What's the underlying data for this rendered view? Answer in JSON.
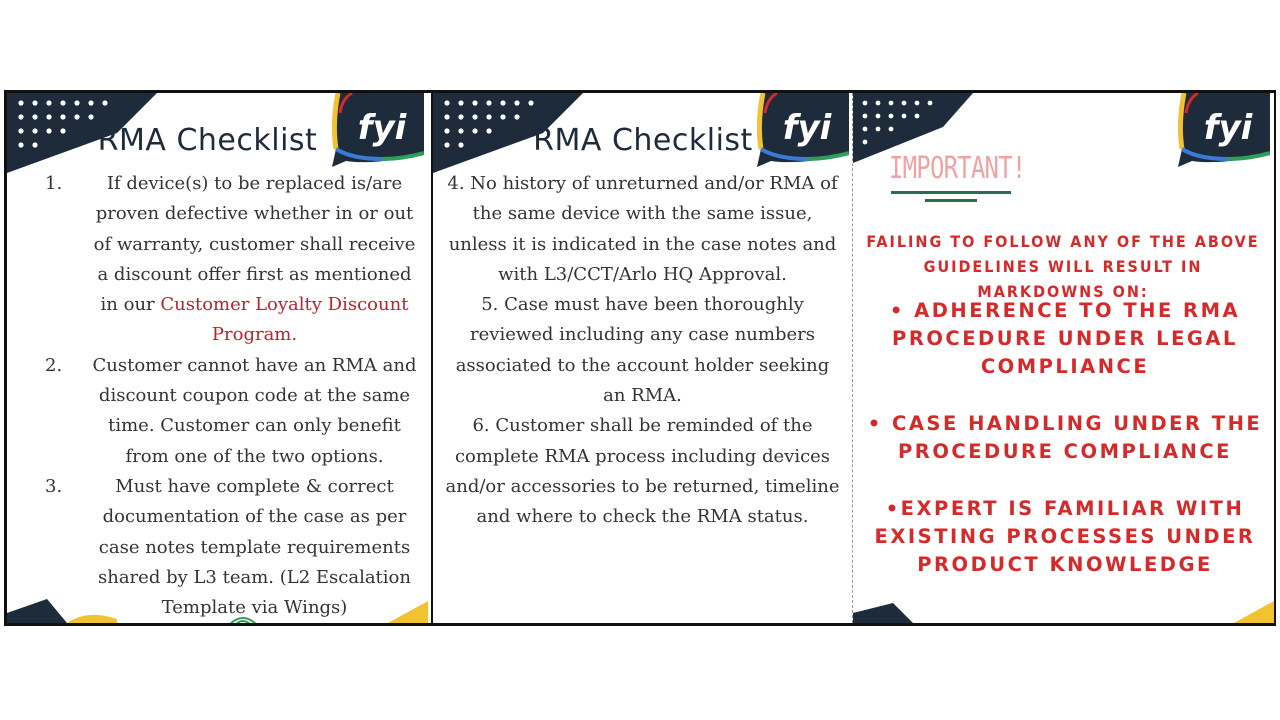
{
  "logo_text": "fyi",
  "colors": {
    "navy": "#1d2b3a",
    "yellow": "#f2c230",
    "red": "#c0222b",
    "alert_red": "#d62a2a",
    "pink": "#f0a3a3",
    "green": "#2e6b53"
  },
  "panel1": {
    "title": "RMA Checklist",
    "items": [
      {
        "num": "1.",
        "text_a": "If device(s) to be replaced is/are proven defective whether in or out of warranty, customer shall receive a discount offer first as mentioned in our ",
        "link": "Customer Loyalty Discount Program.",
        "text_b": ""
      },
      {
        "num": "2.",
        "text_a": "Customer cannot have an RMA and discount coupon code at the same time. Customer can only benefit from one of the two options.",
        "link": "",
        "text_b": ""
      },
      {
        "num": "3.",
        "text_a": "Must have complete & correct documentation of the case as per case notes template requirements shared by L3 team. (L2 Escalation Template via Wings)",
        "link": "",
        "text_b": ""
      }
    ]
  },
  "panel2": {
    "title": "RMA Checklist",
    "items": [
      "4. No history of unreturned and/or RMA of the same device with the same issue, unless it is indicated in the case notes and with L3/CCT/Arlo HQ Approval.",
      "5. Case must have been thoroughly reviewed including any case numbers associated to the account holder seeking an RMA.",
      "6. Customer shall be reminded of the complete RMA process including devices and/or accessories to be returned, timeline and where to check the RMA status."
    ]
  },
  "panel3": {
    "heading": "IMPORTANT!",
    "warning": "FAILING TO FOLLOW ANY OF THE ABOVE GUIDELINES WILL RESULT IN MARKDOWNS ON:",
    "bullets": [
      "• ADHERENCE TO THE RMA PROCEDURE UNDER LEGAL COMPLIANCE",
      "• CASE HANDLING UNDER THE PROCEDURE COMPLIANCE",
      "•EXPERT IS FAMILIAR WITH EXISTING PROCESSES UNDER PRODUCT KNOWLEDGE"
    ]
  }
}
